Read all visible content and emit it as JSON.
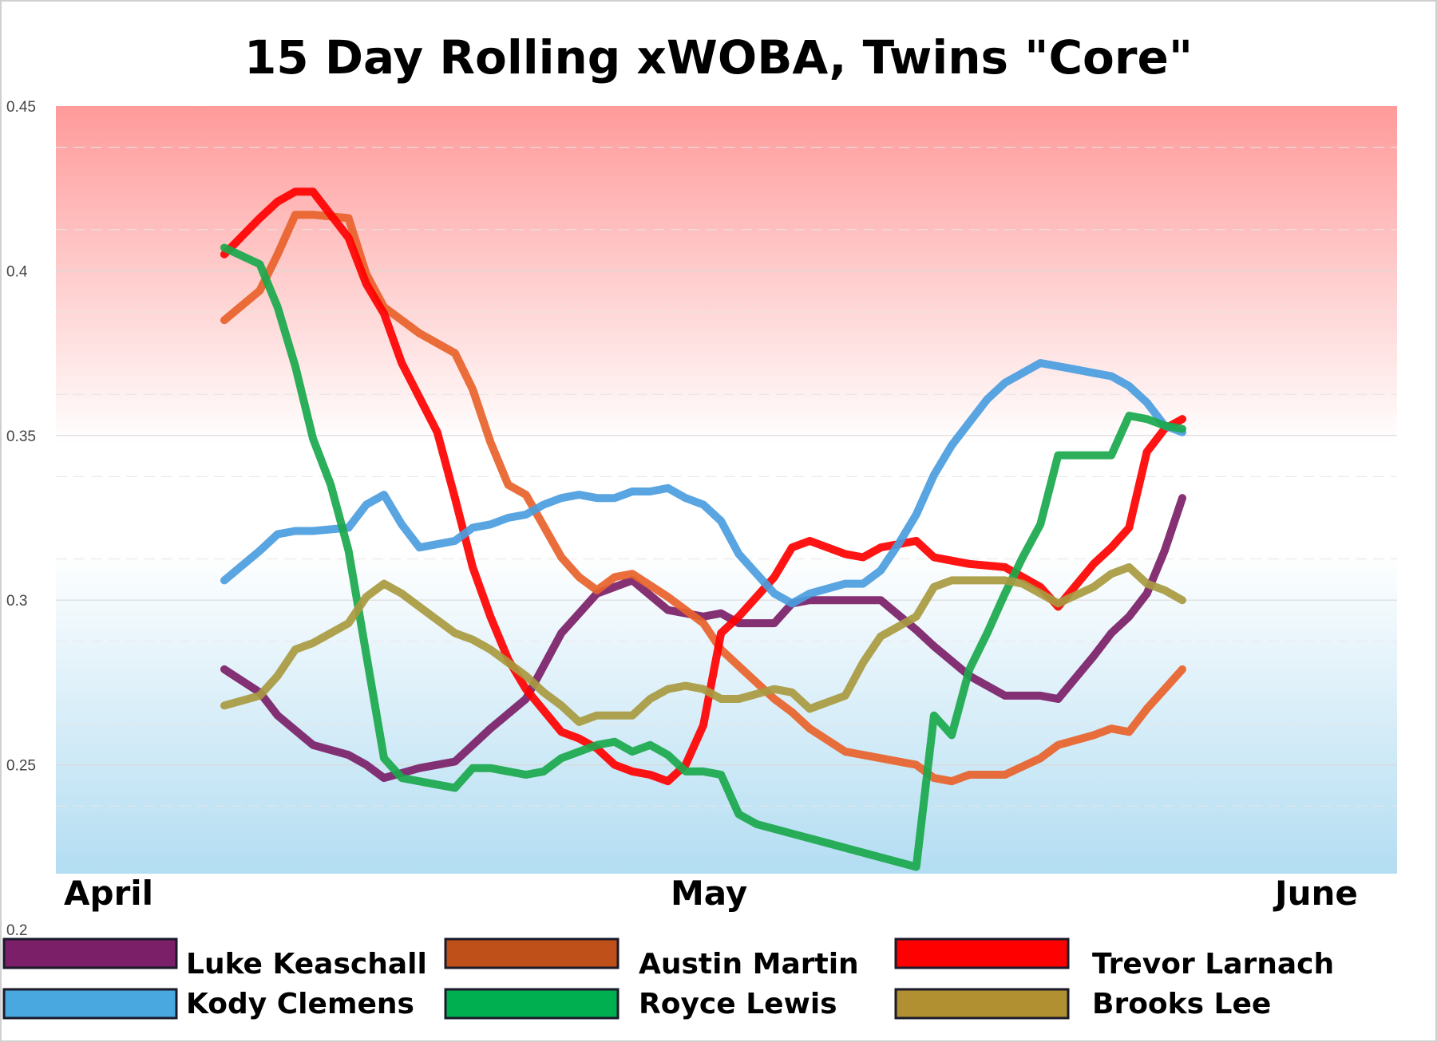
{
  "chart_data": {
    "type": "line",
    "title": "15 Day Rolling xWOBA, Twins \"Core\"",
    "xlabel": "",
    "ylabel": "",
    "ylim": [
      0.2,
      0.45
    ],
    "y_ticks": [
      "0.2",
      "0.25",
      "0.3",
      "0.35",
      "0.4",
      "0.45"
    ],
    "x_tick_labels": [
      "April",
      "May",
      "June"
    ],
    "x_tick_positions": [
      0,
      30,
      61
    ],
    "xlim": [
      0,
      64
    ],
    "grid": true,
    "legend_position": "bottom",
    "background_bands": {
      "upper_color": "#ff9a9a",
      "lower_color": "#b3ddf2"
    },
    "series": [
      {
        "name": "Luke Keaschall",
        "color": "#7b1f68",
        "legend_color": "#7b1f68",
        "x": [
          9,
          11,
          12,
          14,
          16,
          17,
          18,
          20,
          22,
          24,
          26,
          28,
          30,
          31,
          32,
          34,
          36,
          37,
          38,
          40,
          41,
          42,
          44,
          46,
          48,
          49,
          51,
          53,
          55,
          56,
          58,
          59,
          60,
          61,
          62,
          63
        ],
        "y": [
          0.279,
          0.272,
          0.265,
          0.256,
          0.253,
          0.25,
          0.246,
          0.249,
          0.251,
          0.261,
          0.27,
          0.29,
          0.302,
          0.304,
          0.306,
          0.297,
          0.295,
          0.296,
          0.293,
          0.293,
          0.299,
          0.3,
          0.3,
          0.3,
          0.291,
          0.286,
          0.277,
          0.271,
          0.271,
          0.27,
          0.283,
          0.29,
          0.295,
          0.302,
          0.315,
          0.331
        ]
      },
      {
        "name": "Austin Martin",
        "color": "#e8622a",
        "legend_color": "#c0501a",
        "x": [
          9,
          11,
          12,
          13,
          14,
          16,
          17,
          18,
          20,
          22,
          23,
          24,
          25,
          26,
          28,
          29,
          30,
          31,
          32,
          34,
          36,
          37,
          38,
          40,
          41,
          42,
          44,
          45,
          46,
          48,
          49,
          50,
          51,
          53,
          55,
          56,
          58,
          59,
          60,
          61,
          62,
          63
        ],
        "y": [
          0.385,
          0.394,
          0.405,
          0.417,
          0.417,
          0.416,
          0.399,
          0.389,
          0.381,
          0.375,
          0.364,
          0.348,
          0.335,
          0.332,
          0.313,
          0.307,
          0.303,
          0.307,
          0.308,
          0.301,
          0.293,
          0.285,
          0.28,
          0.27,
          0.266,
          0.261,
          0.254,
          0.253,
          0.252,
          0.25,
          0.246,
          0.245,
          0.247,
          0.247,
          0.252,
          0.256,
          0.259,
          0.261,
          0.26,
          0.267,
          0.273,
          0.279
        ]
      },
      {
        "name": "Trevor Larnach",
        "color": "#ff0000",
        "legend_color": "#ff0000",
        "x": [
          9,
          11,
          12,
          13,
          14,
          15,
          16,
          17,
          18,
          19,
          21,
          22,
          23,
          24,
          25,
          26,
          28,
          29,
          30,
          31,
          32,
          33,
          34,
          35,
          36,
          37,
          38,
          40,
          41,
          42,
          44,
          45,
          46,
          48,
          49,
          50,
          51,
          53,
          54,
          55,
          56,
          58,
          59,
          60,
          61,
          62,
          63
        ],
        "y": [
          0.405,
          0.416,
          0.421,
          0.424,
          0.424,
          0.417,
          0.41,
          0.396,
          0.387,
          0.372,
          0.351,
          0.331,
          0.31,
          0.295,
          0.282,
          0.273,
          0.26,
          0.258,
          0.255,
          0.25,
          0.248,
          0.247,
          0.245,
          0.25,
          0.262,
          0.29,
          0.295,
          0.307,
          0.316,
          0.318,
          0.314,
          0.313,
          0.316,
          0.318,
          0.313,
          0.312,
          0.311,
          0.31,
          0.307,
          0.304,
          0.298,
          0.311,
          0.316,
          0.322,
          0.345,
          0.352,
          0.355
        ]
      },
      {
        "name": "Kody Clemens",
        "color": "#4a9de0",
        "legend_color": "#4aa8e0",
        "x": [
          9,
          11,
          12,
          13,
          14,
          16,
          17,
          18,
          19,
          20,
          22,
          23,
          24,
          25,
          26,
          27,
          28,
          29,
          30,
          31,
          32,
          33,
          34,
          35,
          36,
          37,
          38,
          40,
          41,
          42,
          44,
          45,
          46,
          47,
          48,
          49,
          50,
          51,
          52,
          53,
          54,
          55,
          56,
          57,
          58,
          59,
          60,
          61,
          62,
          63
        ],
        "y": [
          0.306,
          0.315,
          0.32,
          0.321,
          0.321,
          0.322,
          0.329,
          0.332,
          0.323,
          0.316,
          0.318,
          0.322,
          0.323,
          0.325,
          0.326,
          0.329,
          0.331,
          0.332,
          0.331,
          0.331,
          0.333,
          0.333,
          0.334,
          0.331,
          0.329,
          0.324,
          0.314,
          0.302,
          0.299,
          0.302,
          0.305,
          0.305,
          0.309,
          0.317,
          0.326,
          0.338,
          0.347,
          0.354,
          0.361,
          0.366,
          0.369,
          0.372,
          0.371,
          0.37,
          0.369,
          0.368,
          0.365,
          0.36,
          0.353,
          0.351
        ]
      },
      {
        "name": "Royce Lewis",
        "color": "#1aa84c",
        "legend_color": "#00b050",
        "x": [
          9,
          11,
          12,
          13,
          14,
          15,
          16,
          18,
          19,
          21,
          22,
          23,
          24,
          26,
          27,
          28,
          29,
          30,
          31,
          32,
          33,
          34,
          35,
          36,
          37,
          38,
          39,
          48,
          49,
          50,
          51,
          52,
          53,
          54,
          55,
          56,
          57,
          58,
          59,
          60,
          61,
          62,
          63
        ],
        "y": [
          0.407,
          0.402,
          0.389,
          0.371,
          0.349,
          0.335,
          0.315,
          0.252,
          0.246,
          0.244,
          0.243,
          0.249,
          0.249,
          0.247,
          0.248,
          0.252,
          0.254,
          0.256,
          0.257,
          0.254,
          0.256,
          0.253,
          0.248,
          0.248,
          0.247,
          0.235,
          0.232,
          0.219,
          0.265,
          0.259,
          0.279,
          0.29,
          0.302,
          0.313,
          0.323,
          0.344,
          0.344,
          0.344,
          0.344,
          0.356,
          0.355,
          0.353,
          0.352
        ]
      },
      {
        "name": "Brooks Lee",
        "color": "#a89a40",
        "legend_color": "#b09030",
        "x": [
          9,
          11,
          12,
          13,
          14,
          16,
          17,
          18,
          19,
          20,
          22,
          23,
          24,
          26,
          27,
          28,
          29,
          30,
          31,
          32,
          33,
          34,
          35,
          36,
          37,
          38,
          40,
          41,
          42,
          44,
          45,
          46,
          48,
          49,
          50,
          51,
          53,
          54,
          55,
          56,
          58,
          59,
          60,
          61,
          62,
          63
        ],
        "y": [
          0.268,
          0.271,
          0.277,
          0.285,
          0.287,
          0.293,
          0.301,
          0.305,
          0.302,
          0.298,
          0.29,
          0.288,
          0.285,
          0.277,
          0.272,
          0.268,
          0.263,
          0.265,
          0.265,
          0.265,
          0.27,
          0.273,
          0.274,
          0.273,
          0.27,
          0.27,
          0.273,
          0.272,
          0.267,
          0.271,
          0.281,
          0.289,
          0.295,
          0.304,
          0.306,
          0.306,
          0.306,
          0.305,
          0.302,
          0.299,
          0.304,
          0.308,
          0.31,
          0.305,
          0.303,
          0.3
        ]
      }
    ]
  }
}
